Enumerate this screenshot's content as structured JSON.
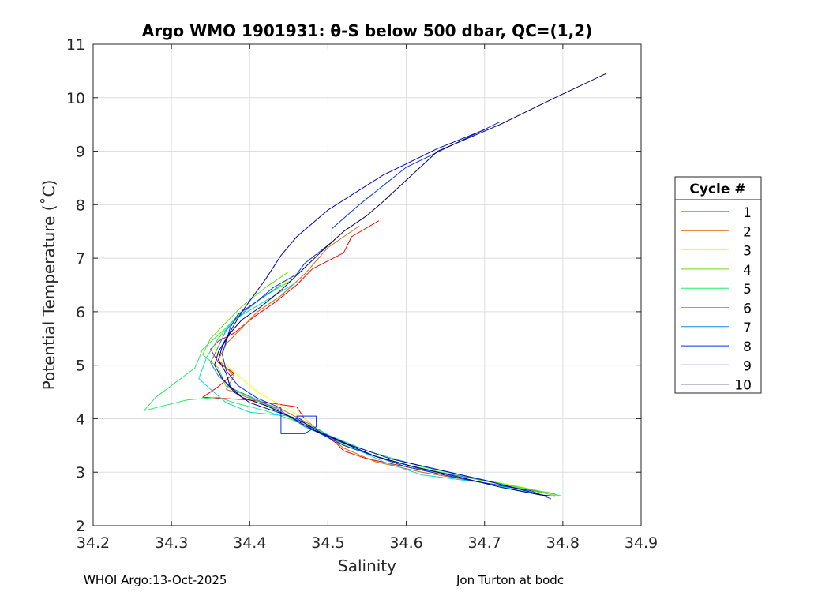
{
  "chart_data": {
    "type": "line",
    "title": "Argo WMO 1901931: θ-S below 500 dbar,  QC=(1,2)",
    "xlabel": "Salinity",
    "ylabel": "Potential Temperature (˚C)",
    "xlim": [
      34.2,
      34.9
    ],
    "ylim": [
      2,
      11
    ],
    "xticks": [
      "34.2",
      "34.3",
      "34.4",
      "34.5",
      "34.6",
      "34.7",
      "34.8",
      "34.9"
    ],
    "yticks": [
      "2",
      "3",
      "4",
      "5",
      "6",
      "7",
      "8",
      "9",
      "10",
      "11"
    ],
    "grid": true,
    "legend_title": "Cycle #",
    "legend_position": "outside-right",
    "series": [
      {
        "name": "1",
        "color": "#ff0000",
        "points": [
          [
            34.565,
            7.7
          ],
          [
            34.53,
            7.4
          ],
          [
            34.52,
            7.1
          ],
          [
            34.48,
            6.8
          ],
          [
            34.46,
            6.5
          ],
          [
            34.43,
            6.15
          ],
          [
            34.405,
            5.9
          ],
          [
            34.38,
            5.6
          ],
          [
            34.36,
            5.45
          ],
          [
            34.35,
            5.3
          ],
          [
            34.36,
            5.05
          ],
          [
            34.38,
            4.85
          ],
          [
            34.36,
            4.6
          ],
          [
            34.34,
            4.4
          ],
          [
            34.4,
            4.35
          ],
          [
            34.46,
            4.22
          ],
          [
            34.47,
            4.0
          ],
          [
            34.49,
            3.75
          ],
          [
            34.51,
            3.55
          ],
          [
            34.52,
            3.4
          ],
          [
            34.55,
            3.25
          ],
          [
            34.6,
            3.1
          ],
          [
            34.68,
            2.85
          ],
          [
            34.74,
            2.7
          ],
          [
            34.79,
            2.6
          ]
        ]
      },
      {
        "name": "2",
        "color": "#d9660d",
        "points": [
          [
            34.54,
            7.6
          ],
          [
            34.5,
            7.2
          ],
          [
            34.47,
            6.7
          ],
          [
            34.44,
            6.3
          ],
          [
            34.41,
            6.0
          ],
          [
            34.39,
            5.7
          ],
          [
            34.37,
            5.4
          ],
          [
            34.36,
            5.1
          ],
          [
            34.38,
            4.8
          ],
          [
            34.37,
            4.55
          ],
          [
            34.4,
            4.38
          ],
          [
            34.44,
            4.18
          ],
          [
            34.47,
            3.95
          ],
          [
            34.5,
            3.7
          ],
          [
            34.52,
            3.45
          ],
          [
            34.56,
            3.2
          ],
          [
            34.62,
            3.0
          ],
          [
            34.7,
            2.8
          ],
          [
            34.79,
            2.6
          ]
        ]
      },
      {
        "name": "3",
        "color": "#ffff00",
        "points": [
          [
            34.46,
            6.7
          ],
          [
            34.43,
            6.4
          ],
          [
            34.4,
            6.1
          ],
          [
            34.38,
            5.8
          ],
          [
            34.36,
            5.55
          ],
          [
            34.355,
            5.3
          ],
          [
            34.37,
            5.0
          ],
          [
            34.39,
            4.75
          ],
          [
            34.41,
            4.5
          ],
          [
            34.44,
            4.25
          ],
          [
            34.47,
            4.0
          ],
          [
            34.49,
            3.72
          ],
          [
            34.53,
            3.45
          ],
          [
            34.58,
            3.2
          ],
          [
            34.66,
            2.95
          ],
          [
            34.74,
            2.75
          ],
          [
            34.8,
            2.55
          ]
        ]
      },
      {
        "name": "4",
        "color": "#66dd11",
        "points": [
          [
            34.45,
            6.75
          ],
          [
            34.42,
            6.45
          ],
          [
            34.39,
            6.1
          ],
          [
            34.37,
            5.8
          ],
          [
            34.35,
            5.5
          ],
          [
            34.34,
            5.2
          ],
          [
            34.36,
            4.95
          ],
          [
            34.37,
            4.6
          ],
          [
            34.4,
            4.4
          ],
          [
            34.43,
            4.2
          ],
          [
            34.46,
            3.95
          ],
          [
            34.49,
            3.72
          ],
          [
            34.53,
            3.45
          ],
          [
            34.58,
            3.2
          ],
          [
            34.66,
            2.95
          ],
          [
            34.74,
            2.72
          ],
          [
            34.795,
            2.55
          ]
        ]
      },
      {
        "name": "5",
        "color": "#22ee66",
        "points": [
          [
            34.455,
            6.6
          ],
          [
            34.42,
            6.3
          ],
          [
            34.39,
            6.0
          ],
          [
            34.37,
            5.7
          ],
          [
            34.34,
            5.3
          ],
          [
            34.33,
            4.95
          ],
          [
            34.28,
            4.4
          ],
          [
            34.265,
            4.15
          ],
          [
            34.32,
            4.35
          ],
          [
            34.36,
            4.4
          ],
          [
            34.38,
            4.3
          ],
          [
            34.42,
            4.15
          ],
          [
            34.46,
            3.95
          ],
          [
            34.5,
            3.7
          ],
          [
            34.55,
            3.4
          ],
          [
            34.62,
            3.1
          ],
          [
            34.7,
            2.85
          ],
          [
            34.78,
            2.62
          ],
          [
            34.8,
            2.55
          ]
        ]
      },
      {
        "name": "6",
        "color": "#00dddd",
        "points": [
          [
            34.46,
            6.55
          ],
          [
            34.42,
            6.2
          ],
          [
            34.38,
            5.85
          ],
          [
            34.36,
            5.5
          ],
          [
            34.345,
            5.15
          ],
          [
            34.335,
            4.75
          ],
          [
            34.35,
            4.55
          ],
          [
            34.37,
            4.3
          ],
          [
            34.4,
            4.12
          ],
          [
            34.45,
            4.05
          ],
          [
            34.48,
            3.85
          ],
          [
            34.52,
            3.55
          ],
          [
            34.57,
            3.2
          ],
          [
            34.62,
            2.95
          ],
          [
            34.7,
            2.8
          ],
          [
            34.78,
            2.55
          ]
        ]
      },
      {
        "name": "7",
        "color": "#1188ee",
        "points": [
          [
            34.44,
            6.5
          ],
          [
            34.41,
            6.2
          ],
          [
            34.385,
            5.9
          ],
          [
            34.37,
            5.65
          ],
          [
            34.36,
            5.35
          ],
          [
            34.35,
            5.05
          ],
          [
            34.36,
            4.8
          ],
          [
            34.38,
            4.55
          ],
          [
            34.41,
            4.35
          ],
          [
            34.44,
            4.15
          ],
          [
            34.47,
            3.85
          ],
          [
            34.51,
            3.6
          ],
          [
            34.56,
            3.3
          ],
          [
            34.62,
            3.05
          ],
          [
            34.7,
            2.85
          ],
          [
            34.78,
            2.55
          ]
        ]
      },
      {
        "name": "8",
        "color": "#0033ee",
        "points": [
          [
            34.72,
            9.55
          ],
          [
            34.6,
            8.7
          ],
          [
            34.54,
            8.0
          ],
          [
            34.505,
            7.55
          ],
          [
            34.505,
            7.3
          ],
          [
            34.47,
            6.9
          ],
          [
            34.46,
            6.7
          ],
          [
            34.43,
            6.45
          ],
          [
            34.41,
            6.2
          ],
          [
            34.385,
            5.95
          ],
          [
            34.375,
            5.7
          ],
          [
            34.37,
            5.45
          ],
          [
            34.365,
            5.2
          ],
          [
            34.37,
            4.9
          ],
          [
            34.385,
            4.62
          ],
          [
            34.41,
            4.38
          ],
          [
            34.44,
            4.2
          ],
          [
            34.44,
            3.95
          ],
          [
            34.44,
            3.72
          ],
          [
            34.47,
            3.72
          ],
          [
            34.485,
            3.85
          ],
          [
            34.485,
            4.05
          ],
          [
            34.46,
            4.05
          ],
          [
            34.48,
            3.8
          ],
          [
            34.52,
            3.5
          ],
          [
            34.56,
            3.3
          ],
          [
            34.6,
            3.1
          ],
          [
            34.68,
            2.85
          ],
          [
            34.76,
            2.65
          ],
          [
            34.785,
            2.5
          ]
        ]
      },
      {
        "name": "9",
        "color": "#0000cc",
        "points": [
          [
            34.7,
            9.4
          ],
          [
            34.64,
            9.05
          ],
          [
            34.57,
            8.55
          ],
          [
            34.5,
            7.9
          ],
          [
            34.46,
            7.4
          ],
          [
            34.44,
            7.05
          ],
          [
            34.42,
            6.6
          ],
          [
            34.405,
            6.3
          ],
          [
            34.39,
            6.0
          ],
          [
            34.38,
            5.75
          ],
          [
            34.37,
            5.5
          ],
          [
            34.36,
            5.25
          ],
          [
            34.355,
            5.0
          ],
          [
            34.365,
            4.75
          ],
          [
            34.38,
            4.5
          ],
          [
            34.4,
            4.3
          ],
          [
            34.43,
            4.15
          ],
          [
            34.46,
            4.0
          ],
          [
            34.49,
            3.75
          ],
          [
            34.53,
            3.5
          ],
          [
            34.58,
            3.25
          ],
          [
            34.64,
            3.05
          ],
          [
            34.7,
            2.85
          ],
          [
            34.78,
            2.55
          ]
        ]
      },
      {
        "name": "10",
        "color": "#00005a",
        "points": [
          [
            34.855,
            10.45
          ],
          [
            34.79,
            10.0
          ],
          [
            34.72,
            9.5
          ],
          [
            34.64,
            9.0
          ],
          [
            34.57,
            8.05
          ],
          [
            34.55,
            7.8
          ],
          [
            34.52,
            7.5
          ],
          [
            34.49,
            7.1
          ],
          [
            34.465,
            6.75
          ],
          [
            34.44,
            6.4
          ],
          [
            34.415,
            6.1
          ],
          [
            34.39,
            5.85
          ],
          [
            34.375,
            5.6
          ],
          [
            34.365,
            5.35
          ],
          [
            34.36,
            5.1
          ],
          [
            34.37,
            4.85
          ],
          [
            34.375,
            4.6
          ],
          [
            34.39,
            4.4
          ],
          [
            34.42,
            4.25
          ],
          [
            34.45,
            4.05
          ],
          [
            34.48,
            3.8
          ],
          [
            34.52,
            3.55
          ],
          [
            34.56,
            3.3
          ],
          [
            34.61,
            3.1
          ],
          [
            34.67,
            2.9
          ],
          [
            34.72,
            2.72
          ],
          [
            34.77,
            2.58
          ],
          [
            34.79,
            2.55
          ]
        ]
      }
    ]
  },
  "footer": {
    "left": "WHOI Argo:13-Oct-2025",
    "right": "Jon Turton at bodc"
  }
}
